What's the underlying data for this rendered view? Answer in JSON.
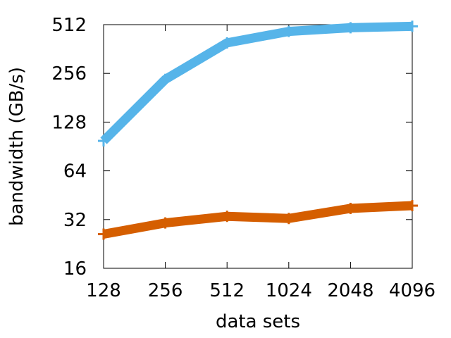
{
  "chart_data": {
    "type": "line",
    "xlabel": "data sets",
    "ylabel": "bandwidth (GB/s)",
    "x_scale": "log2",
    "y_scale": "log2",
    "xlim": [
      128,
      4096
    ],
    "ylim": [
      16,
      512
    ],
    "x_ticks": [
      "128",
      "256",
      "512",
      "1024",
      "2048",
      "4096"
    ],
    "y_ticks": [
      "16",
      "32",
      "64",
      "128",
      "256",
      "512"
    ],
    "grid": false,
    "legend": "none",
    "x": [
      128,
      256,
      512,
      1024,
      2048,
      4096
    ],
    "series": [
      {
        "color": "#56b4e9",
        "values": [
          98,
          235,
          395,
          465,
          490,
          500
        ]
      },
      {
        "color": "#d55e00",
        "values": [
          26,
          30.5,
          33.5,
          32.5,
          37.5,
          39
        ]
      }
    ]
  }
}
